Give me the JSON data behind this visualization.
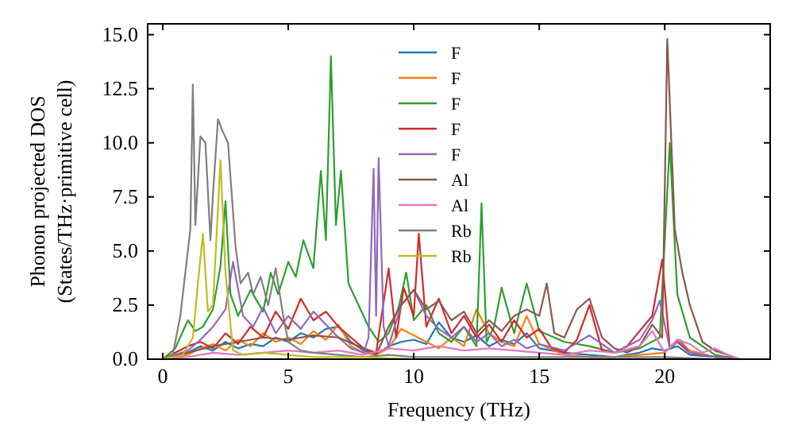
{
  "chart_data": {
    "type": "line",
    "xlabel": "Frequency (THz)",
    "ylabel": "Phonon projected DOS\n(States/THz·primitive cell)",
    "xlim": [
      -0.6,
      24.2
    ],
    "ylim": [
      0,
      15.5
    ],
    "xticks": [
      0,
      5,
      10,
      15,
      20
    ],
    "yticks": [
      {
        "value": 0,
        "label": "0.0"
      },
      {
        "value": 2.5,
        "label": "2.5"
      },
      {
        "value": 5,
        "label": "5.0"
      },
      {
        "value": 7.5,
        "label": "7.5"
      },
      {
        "value": 10,
        "label": "10.0"
      },
      {
        "value": 12.5,
        "label": "12.5"
      },
      {
        "value": 15,
        "label": "15.0"
      }
    ],
    "legend": "top",
    "grid": false,
    "series": [
      {
        "name": "F",
        "color": "#1f77b4",
        "x": [
          0,
          1,
          1.5,
          2,
          2.5,
          3,
          3.5,
          4,
          4.5,
          5,
          5.5,
          6,
          6.5,
          7,
          7.5,
          8,
          8.5,
          9,
          9.5,
          10,
          10.5,
          11,
          11.5,
          12,
          12.5,
          13,
          13.5,
          14,
          14.5,
          15,
          16,
          17,
          18,
          19,
          19.5,
          20,
          20.5,
          21,
          22,
          23
        ],
        "values": [
          0,
          0.3,
          0.6,
          0.4,
          0.8,
          0.5,
          0.7,
          0.6,
          1.0,
          0.8,
          1.2,
          1.0,
          1.4,
          1.5,
          0.8,
          0.4,
          0.2,
          0.6,
          0.8,
          0.9,
          0.7,
          1.7,
          1.0,
          0.8,
          1.1,
          0.6,
          0.9,
          0.7,
          1.2,
          0.5,
          0.3,
          0.2,
          0.1,
          0.3,
          0.5,
          0.4,
          0.6,
          0.2,
          0.1,
          0
        ]
      },
      {
        "name": "F",
        "color": "#ff7f0e",
        "x": [
          0,
          1,
          1.5,
          2,
          2.5,
          3,
          3.5,
          4,
          4.5,
          5,
          5.5,
          6,
          6.5,
          7,
          7.5,
          8,
          8.5,
          9,
          9.5,
          10,
          10.5,
          11,
          11.5,
          12,
          12.5,
          13,
          13.5,
          14,
          14.5,
          15,
          16,
          17,
          18,
          19,
          20,
          20.5,
          21,
          22,
          23
        ],
        "values": [
          0,
          0.2,
          0.5,
          0.7,
          0.4,
          0.9,
          0.6,
          1.2,
          0.8,
          1.0,
          0.7,
          1.3,
          0.9,
          1.6,
          0.6,
          0.3,
          0.2,
          0.5,
          1.4,
          1.1,
          0.8,
          0.5,
          1.0,
          0.6,
          2.3,
          1.2,
          0.8,
          0.6,
          2.0,
          0.7,
          0.2,
          0.1,
          0.1,
          0.2,
          0.3,
          0.9,
          0.4,
          0.1,
          0
        ]
      },
      {
        "name": "F",
        "color": "#2ca02c",
        "x": [
          0,
          0.5,
          1,
          1.3,
          1.6,
          2,
          2.3,
          2.5,
          2.7,
          3,
          3.5,
          4,
          4.3,
          4.6,
          5,
          5.3,
          5.6,
          6,
          6.3,
          6.5,
          6.7,
          6.9,
          7.1,
          7.4,
          7.8,
          8.2,
          8.6,
          9,
          9.4,
          9.7,
          10,
          10.5,
          11,
          11.5,
          12,
          12.5,
          12.7,
          12.9,
          13.2,
          13.5,
          14,
          14.5,
          15,
          16,
          17,
          18,
          19,
          19.8,
          20.2,
          20.5,
          21,
          21.5,
          22,
          23
        ],
        "values": [
          0,
          0.5,
          1.8,
          1.3,
          1.5,
          2.3,
          4.3,
          7.3,
          3.0,
          2.0,
          3.2,
          2.2,
          4.0,
          3.0,
          4.5,
          3.8,
          5.5,
          4.2,
          8.7,
          5.5,
          14.0,
          6.2,
          8.7,
          3.5,
          2.5,
          1.5,
          0.8,
          1.2,
          2.4,
          4.0,
          1.8,
          2.5,
          1.2,
          0.8,
          1.5,
          0.6,
          7.2,
          0.8,
          1.5,
          3.3,
          1.2,
          3.5,
          1.3,
          0.8,
          0.6,
          0.3,
          0.5,
          1.0,
          10.0,
          3.0,
          1.0,
          0.6,
          0.2,
          0
        ]
      },
      {
        "name": "F",
        "color": "#d62728",
        "x": [
          0,
          1,
          1.5,
          2,
          2.5,
          3,
          3.5,
          4,
          4.5,
          5,
          5.5,
          6,
          6.5,
          7,
          7.5,
          8,
          8.5,
          9,
          9.3,
          9.6,
          10,
          10.2,
          10.5,
          11,
          11.5,
          12,
          12.5,
          13,
          13.5,
          14,
          14.5,
          15,
          15.5,
          16,
          16.5,
          17,
          17.5,
          18,
          18.5,
          19,
          19.5,
          19.9,
          20.2,
          20.5,
          21,
          22,
          23
        ],
        "values": [
          0,
          0.6,
          0.8,
          0.5,
          1.2,
          0.7,
          1.5,
          1.0,
          2.2,
          1.4,
          2.8,
          1.8,
          2.2,
          1.5,
          1.0,
          0.5,
          0.3,
          4.2,
          1.0,
          3.3,
          2.0,
          5.8,
          1.5,
          2.8,
          1.2,
          2.0,
          1.0,
          1.6,
          0.8,
          1.8,
          1.0,
          1.4,
          0.5,
          0.3,
          0.9,
          2.5,
          0.4,
          0.3,
          0.6,
          1.3,
          2.0,
          4.6,
          0.5,
          0.8,
          0.3,
          0.1,
          0
        ]
      },
      {
        "name": "F",
        "color": "#9467bd",
        "x": [
          0,
          1,
          1.5,
          2,
          2.5,
          2.8,
          3.2,
          3.6,
          4,
          4.5,
          5,
          5.5,
          6,
          6.5,
          7,
          7.5,
          8,
          8.2,
          8.4,
          8.5,
          8.6,
          8.8,
          9,
          9.5,
          10,
          10.5,
          11,
          11.5,
          12,
          12.5,
          13,
          13.5,
          14,
          14.5,
          15,
          16,
          17,
          18,
          19,
          19.5,
          19.8,
          20.2,
          20.6,
          21,
          22,
          23
        ],
        "values": [
          0,
          0.4,
          0.9,
          1.5,
          2.3,
          4.5,
          2.0,
          1.5,
          2.4,
          1.2,
          2.0,
          1.4,
          2.2,
          1.6,
          1.0,
          0.5,
          0.3,
          1.0,
          8.8,
          2.0,
          9.3,
          1.5,
          0.6,
          2.5,
          3.2,
          2.0,
          1.4,
          1.0,
          1.5,
          0.8,
          1.2,
          0.6,
          0.9,
          0.5,
          0.7,
          0.4,
          1.1,
          0.3,
          0.9,
          1.8,
          2.7,
          0.5,
          0.9,
          0.3,
          0.1,
          0
        ]
      },
      {
        "name": "Al",
        "color": "#8c564b",
        "x": [
          0,
          1,
          2,
          3,
          4,
          5,
          6,
          7,
          8,
          8.5,
          9,
          9.5,
          10,
          10.5,
          11,
          11.5,
          12,
          12.5,
          13,
          13.5,
          14,
          14.5,
          15,
          15.3,
          15.6,
          16,
          16.5,
          17,
          17.5,
          18,
          18.5,
          19,
          19.5,
          19.9,
          20.1,
          20.4,
          20.7,
          21,
          21.5,
          22,
          23
        ],
        "values": [
          0,
          0.3,
          0.6,
          0.8,
          1.0,
          0.9,
          1.1,
          1.0,
          0.5,
          0.2,
          1.5,
          2.5,
          3.2,
          2.3,
          2.7,
          1.8,
          2.2,
          1.2,
          1.8,
          1.3,
          2.0,
          2.3,
          2.0,
          3.5,
          1.2,
          1.0,
          2.3,
          2.8,
          1.0,
          0.5,
          0.3,
          0.6,
          1.6,
          1.0,
          14.8,
          6.0,
          4.0,
          2.5,
          0.8,
          0.4,
          0
        ]
      },
      {
        "name": "Al",
        "color": "#e377c2",
        "x": [
          0,
          1,
          2,
          3,
          4,
          5,
          6,
          7,
          8,
          9,
          10,
          11,
          12,
          13,
          14,
          15,
          16,
          17,
          18,
          19,
          19.5,
          20,
          20.5,
          21,
          21.5,
          22,
          22.5,
          23
        ],
        "values": [
          0,
          0.1,
          0.3,
          0.2,
          0.3,
          0.4,
          0.3,
          0.4,
          0.2,
          0.5,
          0.4,
          0.6,
          0.4,
          0.5,
          0.4,
          0.3,
          0.2,
          0.4,
          0.3,
          0.6,
          1.3,
          0.3,
          0.9,
          0.7,
          0.3,
          0.5,
          0.2,
          0
        ]
      },
      {
        "name": "Rb",
        "color": "#7f7f7f",
        "x": [
          0,
          0.4,
          0.7,
          0.9,
          1.1,
          1.2,
          1.3,
          1.5,
          1.7,
          1.9,
          2.0,
          2.2,
          2.4,
          2.6,
          2.9,
          3.1,
          3.4,
          3.6,
          3.9,
          4.2,
          4.5,
          4.8,
          5,
          5.5,
          6,
          7,
          8,
          9,
          10,
          11,
          12,
          14,
          16,
          18,
          20,
          22,
          23
        ],
        "values": [
          0,
          0.2,
          2.0,
          4.0,
          6.0,
          12.7,
          6.2,
          10.3,
          10.0,
          5.5,
          7.6,
          11.1,
          10.5,
          10.0,
          5.2,
          3.5,
          4.0,
          3.0,
          3.8,
          2.5,
          4.2,
          2.0,
          0.8,
          0.4,
          0.3,
          0.2,
          0.1,
          0.2,
          0.1,
          0.1,
          0.1,
          0.1,
          0.1,
          0.1,
          0.1,
          0,
          0
        ]
      },
      {
        "name": "Rb",
        "color": "#bcbd22",
        "x": [
          0,
          0.8,
          1.2,
          1.4,
          1.6,
          1.8,
          2.0,
          2.3,
          2.5,
          2.8,
          3.2,
          4,
          5,
          6,
          8,
          10,
          14
        ],
        "values": [
          0,
          0.2,
          1.0,
          3.5,
          5.8,
          2.2,
          2.5,
          9.2,
          4.0,
          0.4,
          0.2,
          0.3,
          0.2,
          0.1,
          0.1,
          0,
          0
        ]
      }
    ]
  }
}
